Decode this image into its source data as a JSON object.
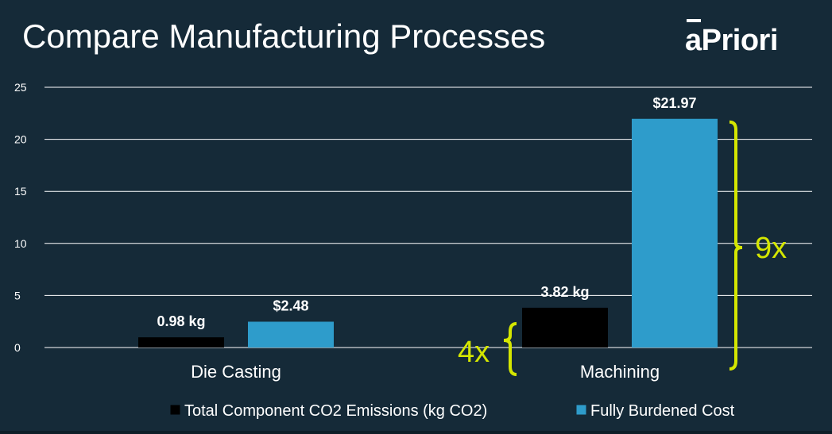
{
  "slide": {
    "title": "Compare Manufacturing Processes",
    "logo_text": "aPriori"
  },
  "chart_data": {
    "type": "bar",
    "title": "",
    "xlabel": "",
    "ylabel": "",
    "categories": [
      "Die Casting",
      "Machining"
    ],
    "series": [
      {
        "name": "Total Component CO2 Emissions (kg CO2)",
        "values": [
          0.98,
          3.82
        ],
        "labels": [
          "0.98 kg",
          "3.82 kg"
        ],
        "color": "#000000"
      },
      {
        "name": "Fully Burdened Cost",
        "values": [
          2.48,
          21.97
        ],
        "labels": [
          "$2.48",
          "$21.97"
        ],
        "color": "#2e9ccb"
      }
    ],
    "ylim": [
      0,
      25
    ],
    "yticks": [
      0,
      5,
      10,
      15,
      20,
      25
    ],
    "grid": true,
    "legend": "bottom",
    "annotations": [
      {
        "text": "4x",
        "series": "Total Component CO2 Emissions (kg CO2)",
        "category": "Machining",
        "color": "#d4e600"
      },
      {
        "text": "9x",
        "series": "Fully Burdened Cost",
        "category": "Machining",
        "color": "#d4e600"
      }
    ]
  }
}
